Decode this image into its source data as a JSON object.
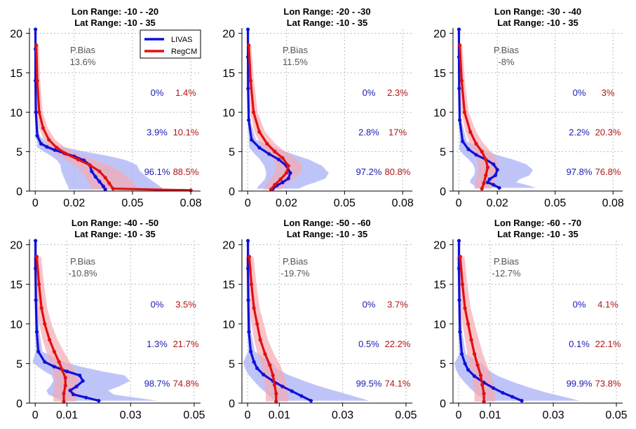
{
  "colors": {
    "livas": "#1010d8",
    "livas_band": "#aab0f5",
    "regcm": "#e01010",
    "regcm_band": "#f5aab0",
    "livas_text": "#1a1ab5",
    "regcm_text": "#b01515",
    "grid": "#bbbbbb",
    "axis": "#000000"
  },
  "legend": {
    "livas": "LIVAS",
    "regcm": "RegCM"
  },
  "chart_data": [
    {
      "type": "line",
      "title_lon": "Lon Range: -10  -  -20",
      "title_lat": "Lat Range: -10  -  35",
      "xticks": [
        "0",
        "0.02",
        "0.05",
        "0.08"
      ],
      "yticks": [
        "0",
        "5",
        "10",
        "15",
        "20"
      ],
      "xlim": [
        -0.003,
        0.085
      ],
      "ylim": [
        0,
        20.5
      ],
      "grid": true,
      "pbias_label": "P.Bias",
      "pbias_value": "13.6%",
      "pct_livas": [
        "0%",
        "3.9%",
        "96.1%"
      ],
      "pct_regcm": [
        "1.4%",
        "10.1%",
        "88.5%"
      ],
      "series": [
        {
          "name": "LIVAS",
          "x": [
            0.0001,
            0.0001,
            0.0001,
            0.0003,
            0.001,
            0.003,
            0.006,
            0.01,
            0.015,
            0.02,
            0.025,
            0.028,
            0.029,
            0.031,
            0.033,
            0.035,
            0.036
          ],
          "y": [
            20.5,
            18,
            14,
            10,
            7,
            6,
            5.6,
            5.2,
            4.8,
            4.4,
            3.9,
            3.3,
            2.5,
            1.8,
            1.2,
            0.6,
            0.2
          ]
        },
        {
          "name": "RegCM",
          "x": [
            0.0005,
            0.001,
            0.002,
            0.004,
            0.007,
            0.011,
            0.016,
            0.022,
            0.028,
            0.033,
            0.036,
            0.038,
            0.04,
            0.08
          ],
          "y": [
            18.5,
            14,
            10,
            8,
            6.5,
            5.5,
            4.7,
            4.0,
            3.3,
            2.5,
            1.7,
            1.0,
            0.3,
            0.1
          ]
        }
      ]
    },
    {
      "type": "line",
      "title_lon": "Lon Range: -20  -  -30",
      "title_lat": "Lat Range: -10  -  35",
      "xticks": [
        "0",
        "0.02",
        "0.05",
        "0.08"
      ],
      "yticks": [
        "0",
        "5",
        "10",
        "15",
        "20"
      ],
      "xlim": [
        -0.003,
        0.085
      ],
      "ylim": [
        0,
        20.5
      ],
      "grid": true,
      "pbias_label": "P.Bias",
      "pbias_value": "11.5%",
      "pct_livas": [
        "0%",
        "2.8%",
        "97.2%"
      ],
      "pct_regcm": [
        "2.3%",
        "17%",
        "80.8%"
      ],
      "series": [
        {
          "name": "LIVAS",
          "x": [
            0.0001,
            0.0001,
            0.0002,
            0.0005,
            0.002,
            0.006,
            0.011,
            0.016,
            0.02,
            0.022,
            0.021,
            0.018,
            0.015,
            0.013
          ],
          "y": [
            20.5,
            17,
            13,
            9,
            6.5,
            5.5,
            4.7,
            4.0,
            3.2,
            2.3,
            1.6,
            1.1,
            0.7,
            0.3
          ]
        },
        {
          "name": "RegCM",
          "x": [
            0.0005,
            0.0015,
            0.003,
            0.006,
            0.01,
            0.014,
            0.018,
            0.021,
            0.02,
            0.017,
            0.014,
            0.012
          ],
          "y": [
            18.5,
            14,
            10,
            7.5,
            6,
            5,
            4.2,
            3.2,
            2.3,
            1.5,
            0.8,
            0.2
          ]
        }
      ]
    },
    {
      "type": "line",
      "title_lon": "Lon Range: -30  -  -40",
      "title_lat": "Lat Range: -10  -  35",
      "xticks": [
        "0",
        "0.02",
        "0.05",
        "0.08"
      ],
      "yticks": [
        "0",
        "5",
        "10",
        "15",
        "20"
      ],
      "xlim": [
        -0.003,
        0.085
      ],
      "ylim": [
        0,
        20.5
      ],
      "grid": true,
      "pbias_label": "P.Bias",
      "pbias_value": "-8%",
      "pct_livas": [
        "0%",
        "2.2%",
        "97.8%"
      ],
      "pct_regcm": [
        "3%",
        "20.3%",
        "76.8%"
      ],
      "series": [
        {
          "name": "LIVAS",
          "x": [
            0.0001,
            0.0001,
            0.0002,
            0.0005,
            0.002,
            0.005,
            0.009,
            0.014,
            0.018,
            0.02,
            0.019,
            0.016,
            0.015,
            0.018,
            0.021
          ],
          "y": [
            20.5,
            17,
            13,
            9,
            6.3,
            5.3,
            4.6,
            4.0,
            3.4,
            2.7,
            2.0,
            1.5,
            1.1,
            0.8,
            0.4
          ]
        },
        {
          "name": "RegCM",
          "x": [
            0.0005,
            0.0015,
            0.003,
            0.006,
            0.009,
            0.012,
            0.014,
            0.015,
            0.014,
            0.013,
            0.012
          ],
          "y": [
            18.5,
            14,
            10,
            7.5,
            6,
            5,
            4,
            3,
            2,
            1,
            0.3
          ]
        }
      ]
    },
    {
      "type": "line",
      "title_lon": "Lon Range: -40  -  -50",
      "title_lat": "Lat Range: -10  -  35",
      "xticks": [
        "0",
        "0.01",
        "0.03",
        "0.05"
      ],
      "yticks": [
        "0",
        "5",
        "10",
        "15",
        "20"
      ],
      "xlim": [
        -0.0018,
        0.052
      ],
      "ylim": [
        0,
        20.5
      ],
      "grid": true,
      "pbias_label": "P.Bias",
      "pbias_value": "-10.8%",
      "pct_livas": [
        "0%",
        "1.3%",
        "98.7%"
      ],
      "pct_regcm": [
        "3.5%",
        "21.7%",
        "74.8%"
      ],
      "series": [
        {
          "name": "LIVAS",
          "x": [
            0.0001,
            0.0001,
            0.0002,
            0.0005,
            0.001,
            0.003,
            0.006,
            0.01,
            0.014,
            0.015,
            0.013,
            0.011,
            0.012,
            0.016,
            0.02
          ],
          "y": [
            20.5,
            17,
            13,
            9,
            6.5,
            5.2,
            4.6,
            4.0,
            3.5,
            2.8,
            2.1,
            1.6,
            1.1,
            0.7,
            0.3
          ]
        },
        {
          "name": "RegCM",
          "x": [
            0.0005,
            0.0012,
            0.002,
            0.003,
            0.0045,
            0.006,
            0.0075,
            0.0085,
            0.0095,
            0.0095,
            0.009,
            0.009
          ],
          "y": [
            18.5,
            15,
            12,
            10,
            8,
            6.5,
            5.2,
            4.2,
            3.2,
            2.2,
            1.2,
            0.2
          ]
        }
      ]
    },
    {
      "type": "line",
      "title_lon": "Lon Range: -50  -  -60",
      "title_lat": "Lat Range: -10  -  35",
      "xticks": [
        "0",
        "0.01",
        "0.03",
        "0.05"
      ],
      "yticks": [
        "0",
        "5",
        "10",
        "15",
        "20"
      ],
      "xlim": [
        -0.0018,
        0.052
      ],
      "ylim": [
        0,
        20.5
      ],
      "grid": true,
      "pbias_label": "P.Bias",
      "pbias_value": "-19.7%",
      "pct_livas": [
        "0%",
        "0.5%",
        "99.5%"
      ],
      "pct_regcm": [
        "3.7%",
        "22.2%",
        "74.1%"
      ],
      "series": [
        {
          "name": "LIVAS",
          "x": [
            0.0001,
            0.0001,
            0.0002,
            0.0004,
            0.001,
            0.002,
            0.003,
            0.005,
            0.008,
            0.011,
            0.014,
            0.017,
            0.02
          ],
          "y": [
            20.5,
            17,
            13,
            9,
            6.5,
            5.2,
            4.4,
            3.6,
            2.8,
            2.1,
            1.5,
            0.9,
            0.3
          ]
        },
        {
          "name": "RegCM",
          "x": [
            0.0005,
            0.0012,
            0.002,
            0.003,
            0.004,
            0.0055,
            0.007,
            0.008,
            0.0085,
            0.009,
            0.009
          ],
          "y": [
            18.5,
            15,
            12,
            10,
            8,
            6.2,
            4.8,
            3.5,
            2.3,
            1.2,
            0.2
          ]
        }
      ]
    },
    {
      "type": "line",
      "title_lon": "Lon Range: -60  -  -70",
      "title_lat": "Lat Range: -10  -  35",
      "xticks": [
        "0",
        "0.01",
        "0.03",
        "0.05"
      ],
      "yticks": [
        "0",
        "5",
        "10",
        "15",
        "20"
      ],
      "xlim": [
        -0.0018,
        0.052
      ],
      "ylim": [
        0,
        20.5
      ],
      "grid": true,
      "pbias_label": "P.Bias",
      "pbias_value": "-12.7%",
      "pct_livas": [
        "0%",
        "0.1%",
        "99.9%"
      ],
      "pct_regcm": [
        "4.1%",
        "22.1%",
        "73.8%"
      ],
      "series": [
        {
          "name": "LIVAS",
          "x": [
            0.0001,
            0.0001,
            0.0002,
            0.0004,
            0.001,
            0.002,
            0.003,
            0.005,
            0.008,
            0.011,
            0.014,
            0.017,
            0.02
          ],
          "y": [
            20.5,
            17,
            13,
            9,
            6.2,
            5.0,
            4.2,
            3.4,
            2.6,
            1.9,
            1.3,
            0.8,
            0.3
          ]
        },
        {
          "name": "RegCM",
          "x": [
            0.0005,
            0.0012,
            0.002,
            0.003,
            0.004,
            0.005,
            0.006,
            0.007,
            0.0075,
            0.008,
            0.008
          ],
          "y": [
            18.5,
            15,
            12,
            10,
            8,
            6.2,
            4.8,
            3.5,
            2.3,
            1.2,
            0.2
          ]
        }
      ]
    }
  ]
}
